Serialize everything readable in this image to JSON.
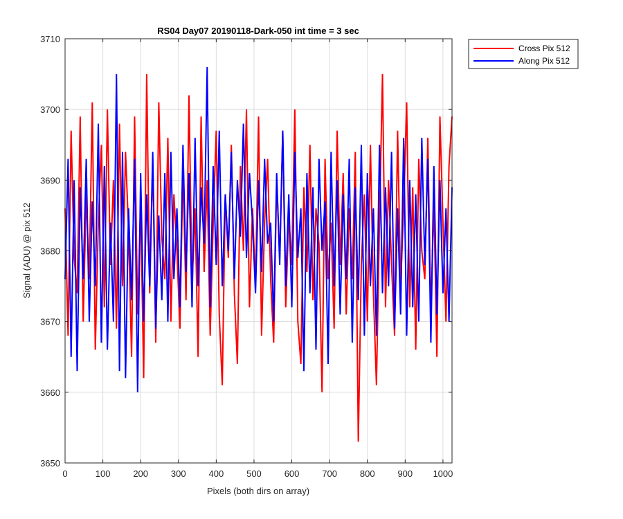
{
  "chart_data": {
    "type": "line",
    "title": "RS04 Day07 20190118-Dark-050 int time = 3 sec",
    "xlabel": "Pixels (both dirs on array)",
    "ylabel": "Signal (ADU) @ pix 512",
    "xlim": [
      0,
      1024
    ],
    "ylim": [
      3650,
      3710
    ],
    "xticks": [
      0,
      100,
      200,
      300,
      400,
      500,
      600,
      700,
      800,
      900,
      1000
    ],
    "yticks": [
      3650,
      3660,
      3670,
      3680,
      3690,
      3700,
      3710
    ],
    "grid": true,
    "legend_position": "outside-top-right",
    "x": [
      0,
      8,
      16,
      24,
      32,
      40,
      48,
      56,
      64,
      72,
      80,
      88,
      96,
      104,
      112,
      120,
      128,
      136,
      144,
      152,
      160,
      168,
      176,
      184,
      192,
      200,
      208,
      216,
      224,
      232,
      240,
      248,
      256,
      264,
      272,
      280,
      288,
      296,
      304,
      312,
      320,
      328,
      336,
      344,
      352,
      360,
      368,
      376,
      384,
      392,
      400,
      408,
      416,
      424,
      432,
      440,
      448,
      456,
      464,
      472,
      480,
      488,
      496,
      504,
      512,
      520,
      528,
      536,
      544,
      552,
      560,
      568,
      576,
      584,
      592,
      600,
      608,
      616,
      624,
      632,
      640,
      648,
      656,
      664,
      672,
      680,
      688,
      696,
      704,
      712,
      720,
      728,
      736,
      744,
      752,
      760,
      768,
      776,
      784,
      792,
      800,
      808,
      816,
      824,
      832,
      840,
      848,
      856,
      864,
      872,
      880,
      888,
      896,
      904,
      912,
      920,
      928,
      936,
      944,
      952,
      960,
      968,
      976,
      984,
      992,
      1000,
      1008,
      1016,
      1024
    ],
    "series": [
      {
        "name": "Cross Pix 512",
        "color": "#ff0000",
        "values": [
          3686,
          3668,
          3697,
          3679,
          3674,
          3699,
          3670,
          3688,
          3676,
          3701,
          3666,
          3684,
          3695,
          3672,
          3700,
          3678,
          3690,
          3669,
          3698,
          3675,
          3694,
          3683,
          3665,
          3699,
          3671,
          3687,
          3662,
          3705,
          3674,
          3693,
          3667,
          3701,
          3682,
          3676,
          3696,
          3670,
          3688,
          3680,
          3669,
          3692,
          3673,
          3702,
          3675,
          3686,
          3665,
          3699,
          3677,
          3690,
          3668,
          3684,
          3697,
          3671,
          3661,
          3688,
          3679,
          3695,
          3674,
          3664,
          3692,
          3680,
          3700,
          3672,
          3686,
          3675,
          3699,
          3668,
          3684,
          3693,
          3676,
          3667,
          3690,
          3679,
          3697,
          3672,
          3685,
          3678,
          3700,
          3670,
          3664,
          3689,
          3677,
          3695,
          3673,
          3686,
          3681,
          3660,
          3693,
          3676,
          3684,
          3669,
          3697,
          3678,
          3691,
          3671,
          3686,
          3676,
          3694,
          3653,
          3678,
          3688,
          3670,
          3695,
          3674,
          3661,
          3684,
          3705,
          3672,
          3690,
          3678,
          3668,
          3697,
          3675,
          3686,
          3701,
          3672,
          3689,
          3666,
          3693,
          3680,
          3676,
          3696,
          3671,
          3687,
          3665,
          3699,
          3684,
          3670,
          3692,
          3699
        ]
      },
      {
        "name": "Along Pix 512",
        "color": "#0000ff",
        "values": [
          3676,
          3693,
          3665,
          3690,
          3663,
          3689,
          3676,
          3693,
          3670,
          3687,
          3675,
          3698,
          3667,
          3692,
          3666,
          3684,
          3670,
          3705,
          3663,
          3694,
          3662,
          3686,
          3673,
          3693,
          3660,
          3691,
          3670,
          3688,
          3675,
          3694,
          3669,
          3685,
          3673,
          3691,
          3670,
          3694,
          3676,
          3686,
          3672,
          3695,
          3677,
          3691,
          3672,
          3696,
          3675,
          3689,
          3681,
          3706,
          3672,
          3692,
          3678,
          3697,
          3675,
          3688,
          3680,
          3694,
          3676,
          3690,
          3682,
          3698,
          3679,
          3691,
          3684,
          3674,
          3690,
          3677,
          3693,
          3681,
          3684,
          3670,
          3691,
          3678,
          3697,
          3675,
          3688,
          3672,
          3694,
          3679,
          3686,
          3663,
          3691,
          3674,
          3689,
          3666,
          3693,
          3680,
          3687,
          3664,
          3694,
          3675,
          3690,
          3671,
          3688,
          3676,
          3693,
          3667,
          3689,
          3673,
          3695,
          3668,
          3691,
          3675,
          3686,
          3668,
          3695,
          3674,
          3689,
          3675,
          3694,
          3669,
          3686,
          3671,
          3696,
          3668,
          3690,
          3672,
          3688,
          3670,
          3696,
          3678,
          3693,
          3667,
          3692,
          3671,
          3690,
          3674,
          3686,
          3670,
          3689
        ]
      }
    ]
  }
}
